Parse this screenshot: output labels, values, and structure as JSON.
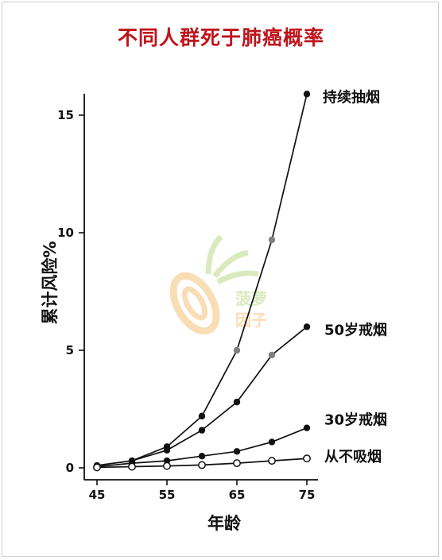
{
  "chart_data": {
    "type": "line",
    "title": "不同人群死于肺癌概率",
    "xlabel": "年龄",
    "ylabel": "累计风险%",
    "xlim": [
      45,
      75
    ],
    "ylim": [
      0,
      16
    ],
    "x_ticks": [
      "45",
      "55",
      "65",
      "75"
    ],
    "y_ticks": [
      "0",
      "5",
      "10",
      "15"
    ],
    "grid": false,
    "series": [
      {
        "name": "持续抽烟",
        "marker": "filled",
        "x": [
          45,
          50,
          55,
          60,
          65,
          70,
          75
        ],
        "y": [
          0.1,
          0.3,
          0.9,
          2.2,
          5.0,
          9.7,
          15.9
        ]
      },
      {
        "name": "50岁戒烟",
        "marker": "filled",
        "x": [
          45,
          50,
          55,
          60,
          65,
          70,
          75
        ],
        "y": [
          0.1,
          0.3,
          0.75,
          1.6,
          2.8,
          4.8,
          6.0
        ]
      },
      {
        "name": "30岁戒烟",
        "marker": "filled",
        "x": [
          45,
          50,
          55,
          60,
          65,
          70,
          75
        ],
        "y": [
          0.05,
          0.2,
          0.3,
          0.5,
          0.7,
          1.1,
          1.7
        ]
      },
      {
        "name": "从不吸烟",
        "marker": "open",
        "x": [
          45,
          50,
          55,
          60,
          65,
          70,
          75
        ],
        "y": [
          0.02,
          0.05,
          0.08,
          0.12,
          0.2,
          0.3,
          0.4
        ]
      }
    ]
  },
  "watermark": {
    "text_line1": "菠萝",
    "text_line2": "因子"
  },
  "colors": {
    "title": "#c0141c",
    "line": "#111111",
    "gray_marker": "#808080",
    "watermark_orange": "#f5c37a",
    "watermark_green": "#bcd98a"
  }
}
